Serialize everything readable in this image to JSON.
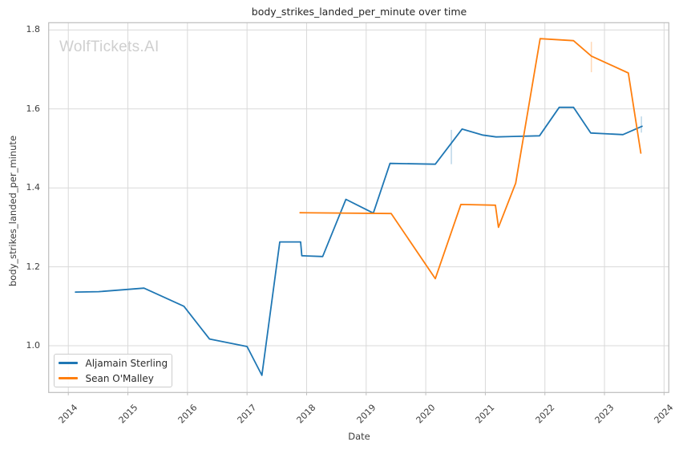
{
  "watermark": "WolfTickets.AI",
  "chart_data": {
    "type": "line",
    "title": "body_strikes_landed_per_minute over time",
    "xlabel": "Date",
    "ylabel": "body_strikes_landed_per_minute",
    "grid": true,
    "legend_position": "lower left",
    "xlim": [
      2013.67,
      2024.08
    ],
    "ylim": [
      0.8815,
      1.8185
    ],
    "xticks": [
      2014,
      2015,
      2016,
      2017,
      2018,
      2019,
      2020,
      2021,
      2022,
      2023,
      2024
    ],
    "yticks": [
      1.0,
      1.2,
      1.4,
      1.6,
      1.8
    ],
    "grid_color": "#d9d9d9",
    "spine_color": "#bdbdbd",
    "series": [
      {
        "name": "Aljamain Sterling",
        "color": "#1f77b4",
        "points": [
          [
            2014.12,
            1.136
          ],
          [
            2014.51,
            1.137
          ],
          [
            2015.27,
            1.146
          ],
          [
            2015.94,
            1.1
          ],
          [
            2016.37,
            1.017
          ],
          [
            2017.0,
            0.998
          ],
          [
            2017.25,
            0.925
          ],
          [
            2017.55,
            1.263
          ],
          [
            2017.9,
            1.263
          ],
          [
            2017.92,
            1.228
          ],
          [
            2018.27,
            1.226
          ],
          [
            2018.66,
            1.371
          ],
          [
            2019.12,
            1.336
          ],
          [
            2019.4,
            1.462
          ],
          [
            2020.16,
            1.46
          ],
          [
            2020.61,
            1.549
          ],
          [
            2020.95,
            1.534
          ],
          [
            2021.18,
            1.529
          ],
          [
            2021.91,
            1.532
          ],
          [
            2022.24,
            1.604
          ],
          [
            2022.48,
            1.604
          ],
          [
            2022.77,
            1.539
          ],
          [
            2023.31,
            1.535
          ],
          [
            2023.63,
            1.556
          ]
        ]
      },
      {
        "name": "Sean O'Malley",
        "color": "#ff7f0e",
        "points": [
          [
            2017.89,
            1.337
          ],
          [
            2019.42,
            1.335
          ],
          [
            2020.16,
            1.17
          ],
          [
            2020.59,
            1.358
          ],
          [
            2021.17,
            1.356
          ],
          [
            2021.22,
            1.3
          ],
          [
            2021.51,
            1.412
          ],
          [
            2021.92,
            1.778
          ],
          [
            2022.48,
            1.773
          ],
          [
            2022.78,
            1.734
          ],
          [
            2023.4,
            1.691
          ],
          [
            2023.61,
            1.488
          ]
        ]
      }
    ],
    "marker_ticks": [
      {
        "series": 0,
        "x": 2020.43,
        "y_from": 1.46,
        "y_to": 1.547
      },
      {
        "series": 1,
        "x": 2022.78,
        "y_from": 1.693,
        "y_to": 1.77
      },
      {
        "series": 0,
        "x": 2023.62,
        "y_from": 1.54,
        "y_to": 1.581
      }
    ]
  }
}
